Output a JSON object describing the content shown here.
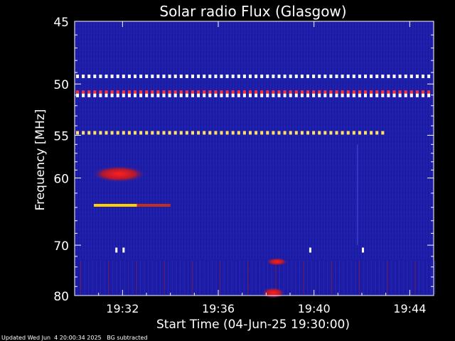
{
  "chart_data": {
    "type": "heatmap",
    "title": "Solar radio Flux (Glasgow)",
    "xlabel": "Start Time (04-Jun-25 19:30:00)",
    "ylabel": "Frequency [MHz]",
    "x_range_minutes": [
      0,
      15
    ],
    "x_tick_labels": [
      "19:32",
      "19:36",
      "19:40",
      "19:44"
    ],
    "x_tick_minutes": [
      2,
      6,
      10,
      14
    ],
    "y_range_mhz": [
      45,
      80
    ],
    "y_axis": "reciprocal",
    "y_tick_labels": [
      "45",
      "50",
      "55",
      "60",
      "70",
      "80"
    ],
    "y_tick_values": [
      45,
      50,
      55,
      60,
      70,
      80
    ],
    "background": "#1a1aa8",
    "features": [
      {
        "kind": "dashed-line",
        "mhz": 49.3,
        "t0": 0,
        "t1": 15,
        "color": "#ffffff"
      },
      {
        "kind": "dashed-line",
        "mhz": 50.7,
        "t0": 0,
        "t1": 15,
        "color": "#ff3030"
      },
      {
        "kind": "dashed-line",
        "mhz": 51.0,
        "t0": 0,
        "t1": 15,
        "color": "#ffffff"
      },
      {
        "kind": "dashed-line",
        "mhz": 54.7,
        "t0": 0,
        "t1": 13,
        "color": "#ffe060"
      },
      {
        "kind": "line",
        "mhz": 63.7,
        "t0": 0.8,
        "t1": 2.6,
        "color": "#ffd000"
      },
      {
        "kind": "line",
        "mhz": 63.7,
        "t0": 2.6,
        "t1": 4.0,
        "color": "#c03020"
      },
      {
        "kind": "patch",
        "mhz0": 58.8,
        "mhz1": 60.2,
        "t0": 0.7,
        "t1": 3.0,
        "color": "#c02020"
      },
      {
        "kind": "patch",
        "mhz0": 78.8,
        "mhz1": 80.0,
        "t0": 7.8,
        "t1": 8.8,
        "color": "#c02020"
      },
      {
        "kind": "patch",
        "mhz0": 72.8,
        "mhz1": 73.2,
        "t0": 8.0,
        "t1": 8.9,
        "color": "#c02020"
      }
    ],
    "footer_text": "Updated Wed Jun  4 20:00:34 2025   BG subtracted"
  },
  "colors": {
    "text": "#ffffff",
    "plot_bg": "#1c1ca6",
    "plot_bg_dark": "#12128a",
    "hot_red": "#d02020",
    "hot_yellow": "#ffe040",
    "white": "#ffffff"
  }
}
